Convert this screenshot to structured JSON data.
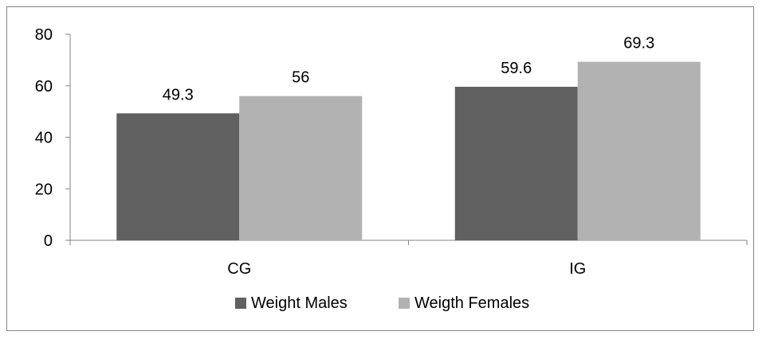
{
  "chart_data": {
    "type": "bar",
    "title": "",
    "xlabel": "",
    "ylabel": "",
    "ylim": [
      0,
      80
    ],
    "yticks": [
      "0",
      "20",
      "40",
      "60",
      "80"
    ],
    "grid": false,
    "legend_position": "bottom",
    "categories": [
      "CG",
      "IG"
    ],
    "series": [
      {
        "name": "Weight Males",
        "values": [
          49.3,
          59.6
        ],
        "labels": [
          "49.3",
          "59.6"
        ],
        "color": "#606060"
      },
      {
        "name": "Weigth Females",
        "values": [
          56,
          69.3
        ],
        "labels": [
          "56",
          "69.3"
        ],
        "color": "#b2b2b2"
      }
    ]
  }
}
